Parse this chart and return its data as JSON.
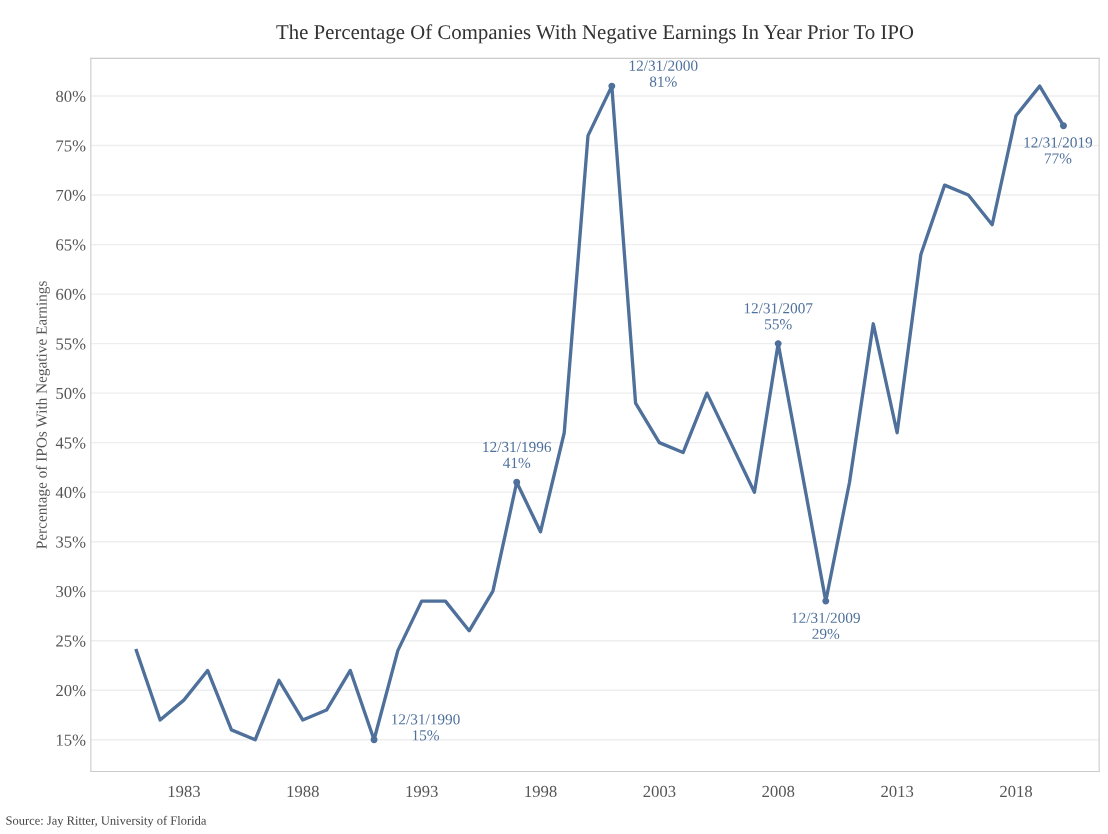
{
  "chart_data": {
    "type": "line",
    "title": "The Percentage Of Companies With Negative Earnings In Year Prior To IPO",
    "ylabel": "Percentage of IPOs With Negative Earnings",
    "x": [
      "1980-12-31",
      "1981-12-31",
      "1982-12-31",
      "1983-12-31",
      "1984-12-31",
      "1985-12-31",
      "1986-12-31",
      "1987-12-31",
      "1988-12-31",
      "1989-12-31",
      "1990-12-31",
      "1991-12-31",
      "1992-12-31",
      "1993-12-31",
      "1994-12-31",
      "1995-12-31",
      "1996-12-31",
      "1997-12-31",
      "1998-12-31",
      "1999-12-31",
      "2000-12-31",
      "2001-12-31",
      "2002-12-31",
      "2003-12-31",
      "2004-12-31",
      "2005-12-31",
      "2006-12-31",
      "2007-12-31",
      "2008-12-31",
      "2009-12-31",
      "2010-12-31",
      "2011-12-31",
      "2012-12-31",
      "2013-12-31",
      "2014-12-31",
      "2015-12-31",
      "2016-12-31",
      "2017-12-31",
      "2018-12-31",
      "2019-12-31"
    ],
    "series": [
      {
        "color": "#4e709b",
        "values": [
          24,
          17,
          19,
          22,
          16,
          15,
          21,
          17,
          18,
          22,
          15,
          24,
          29,
          29,
          26,
          30,
          41,
          36,
          46,
          76,
          81,
          49,
          45,
          44,
          50,
          45,
          40,
          55,
          42,
          29,
          41,
          57,
          46,
          64,
          71,
          70,
          67,
          78,
          81,
          77
        ]
      }
    ],
    "xlim": [
      "1979-02-01",
      "2021-07-01"
    ],
    "xticks": [
      {
        "value": "1983-01-01",
        "label": "1983"
      },
      {
        "value": "1988-01-01",
        "label": "1988"
      },
      {
        "value": "1993-01-01",
        "label": "1993"
      },
      {
        "value": "1998-01-01",
        "label": "1998"
      },
      {
        "value": "2003-01-01",
        "label": "2003"
      },
      {
        "value": "2008-01-01",
        "label": "2008"
      },
      {
        "value": "2013-01-01",
        "label": "2013"
      },
      {
        "value": "2018-01-01",
        "label": "2018"
      }
    ],
    "ylim": [
      11.8,
      83.8
    ],
    "yticks": [
      {
        "value": 15,
        "label": "15%"
      },
      {
        "value": 20,
        "label": "20%"
      },
      {
        "value": 25,
        "label": "25%"
      },
      {
        "value": 30,
        "label": "30%"
      },
      {
        "value": 35,
        "label": "35%"
      },
      {
        "value": 40,
        "label": "40%"
      },
      {
        "value": 45,
        "label": "45%"
      },
      {
        "value": 50,
        "label": "50%"
      },
      {
        "value": 55,
        "label": "55%"
      },
      {
        "value": 60,
        "label": "60%"
      },
      {
        "value": 65,
        "label": "65%"
      },
      {
        "value": 70,
        "label": "70%"
      },
      {
        "value": 75,
        "label": "75%"
      },
      {
        "value": 80,
        "label": "80%"
      }
    ],
    "grid": "y",
    "marker": "none",
    "line_style": "solid",
    "annotations": [
      {
        "text": "12/31/1990\n15%",
        "x": "1990-12-31",
        "y": 15
      },
      {
        "text": "12/31/1996\n41%",
        "x": "1996-12-31",
        "y": 41
      },
      {
        "text": "12/31/2000\n81%",
        "x": "2000-12-31",
        "y": 81
      },
      {
        "text": "12/31/2007\n55%",
        "x": "2007-12-31",
        "y": 55
      },
      {
        "text": "12/31/2009\n29%",
        "x": "2009-12-31",
        "y": 29
      },
      {
        "text": "12/31/2019\n77%",
        "x": "2019-12-31",
        "y": 77
      },
      "Source: Jay Ritter, University of Florida"
    ]
  }
}
